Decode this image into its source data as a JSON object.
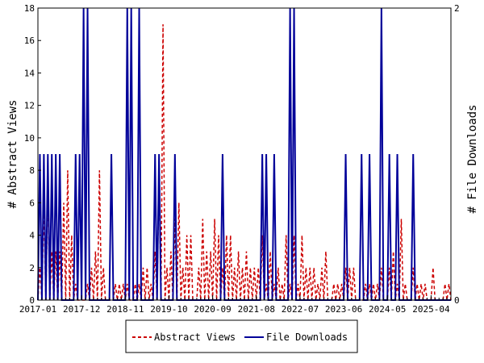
{
  "chart_data": {
    "type": "line",
    "title": "",
    "xlabel": "",
    "ylabel_left": "# Abstract Views",
    "ylabel_right": "# File Downloads",
    "x_tick_labels": [
      "2017-01",
      "2017-12",
      "2018-11",
      "2019-10",
      "2020-09",
      "2021-08",
      "2022-07",
      "2023-06",
      "2024-05",
      "2025-04"
    ],
    "ylim_left": [
      0,
      18
    ],
    "yticks_left": [
      0,
      2,
      4,
      6,
      8,
      10,
      12,
      14,
      16,
      18
    ],
    "ylim_right": [
      0,
      2
    ],
    "yticks_right": [
      0,
      2
    ],
    "x_range_months": [
      0,
      104
    ],
    "grid": false,
    "legend_position": "bottom-center",
    "series": [
      {
        "name": "Abstract Views",
        "axis": "left",
        "style": "dashed",
        "color": "#cc0000",
        "values": [
          2,
          6,
          7,
          3,
          3,
          3,
          6,
          8,
          4,
          1,
          0,
          0,
          1,
          2,
          3,
          8,
          2,
          0,
          0,
          1,
          1,
          1,
          1,
          0,
          1,
          1,
          2,
          2,
          1,
          3,
          8,
          17,
          2,
          3,
          5,
          6,
          2,
          4,
          4,
          0,
          2,
          5,
          3,
          3,
          5,
          4,
          2,
          4,
          4,
          2,
          3,
          2,
          3,
          2,
          2,
          2,
          4,
          1,
          3,
          1,
          2,
          1,
          4,
          1,
          4,
          1,
          4,
          2,
          2,
          2,
          1,
          2,
          3,
          0,
          1,
          1,
          1,
          2,
          2,
          2,
          0,
          0,
          1,
          1,
          1,
          1,
          2,
          0,
          2,
          3,
          1,
          5,
          1,
          0,
          2,
          1,
          1,
          1,
          0,
          2,
          0,
          0,
          1,
          1
        ]
      },
      {
        "name": "File Downloads",
        "axis": "right",
        "style": "solid",
        "color": "#000099",
        "values": [
          1,
          1,
          1,
          1,
          1,
          1,
          0,
          0,
          0,
          1,
          1,
          2,
          2,
          0,
          0,
          0,
          0,
          0,
          1,
          0,
          0,
          0,
          2,
          2,
          0,
          2,
          0,
          0,
          0,
          1,
          1,
          0,
          0,
          0,
          1,
          0,
          0,
          0,
          0,
          0,
          0,
          0,
          0,
          0,
          0,
          0,
          1,
          0,
          0,
          0,
          0,
          0,
          0,
          0,
          0,
          0,
          1,
          1,
          0,
          1,
          0,
          0,
          0,
          2,
          2,
          0,
          0,
          0,
          0,
          0,
          0,
          0,
          0,
          0,
          0,
          0,
          0,
          1,
          0,
          0,
          0,
          1,
          0,
          1,
          0,
          0,
          2,
          0,
          1,
          0,
          1,
          0,
          0,
          0,
          1,
          0,
          0,
          0,
          0,
          0,
          0,
          0,
          0,
          0
        ]
      }
    ]
  }
}
